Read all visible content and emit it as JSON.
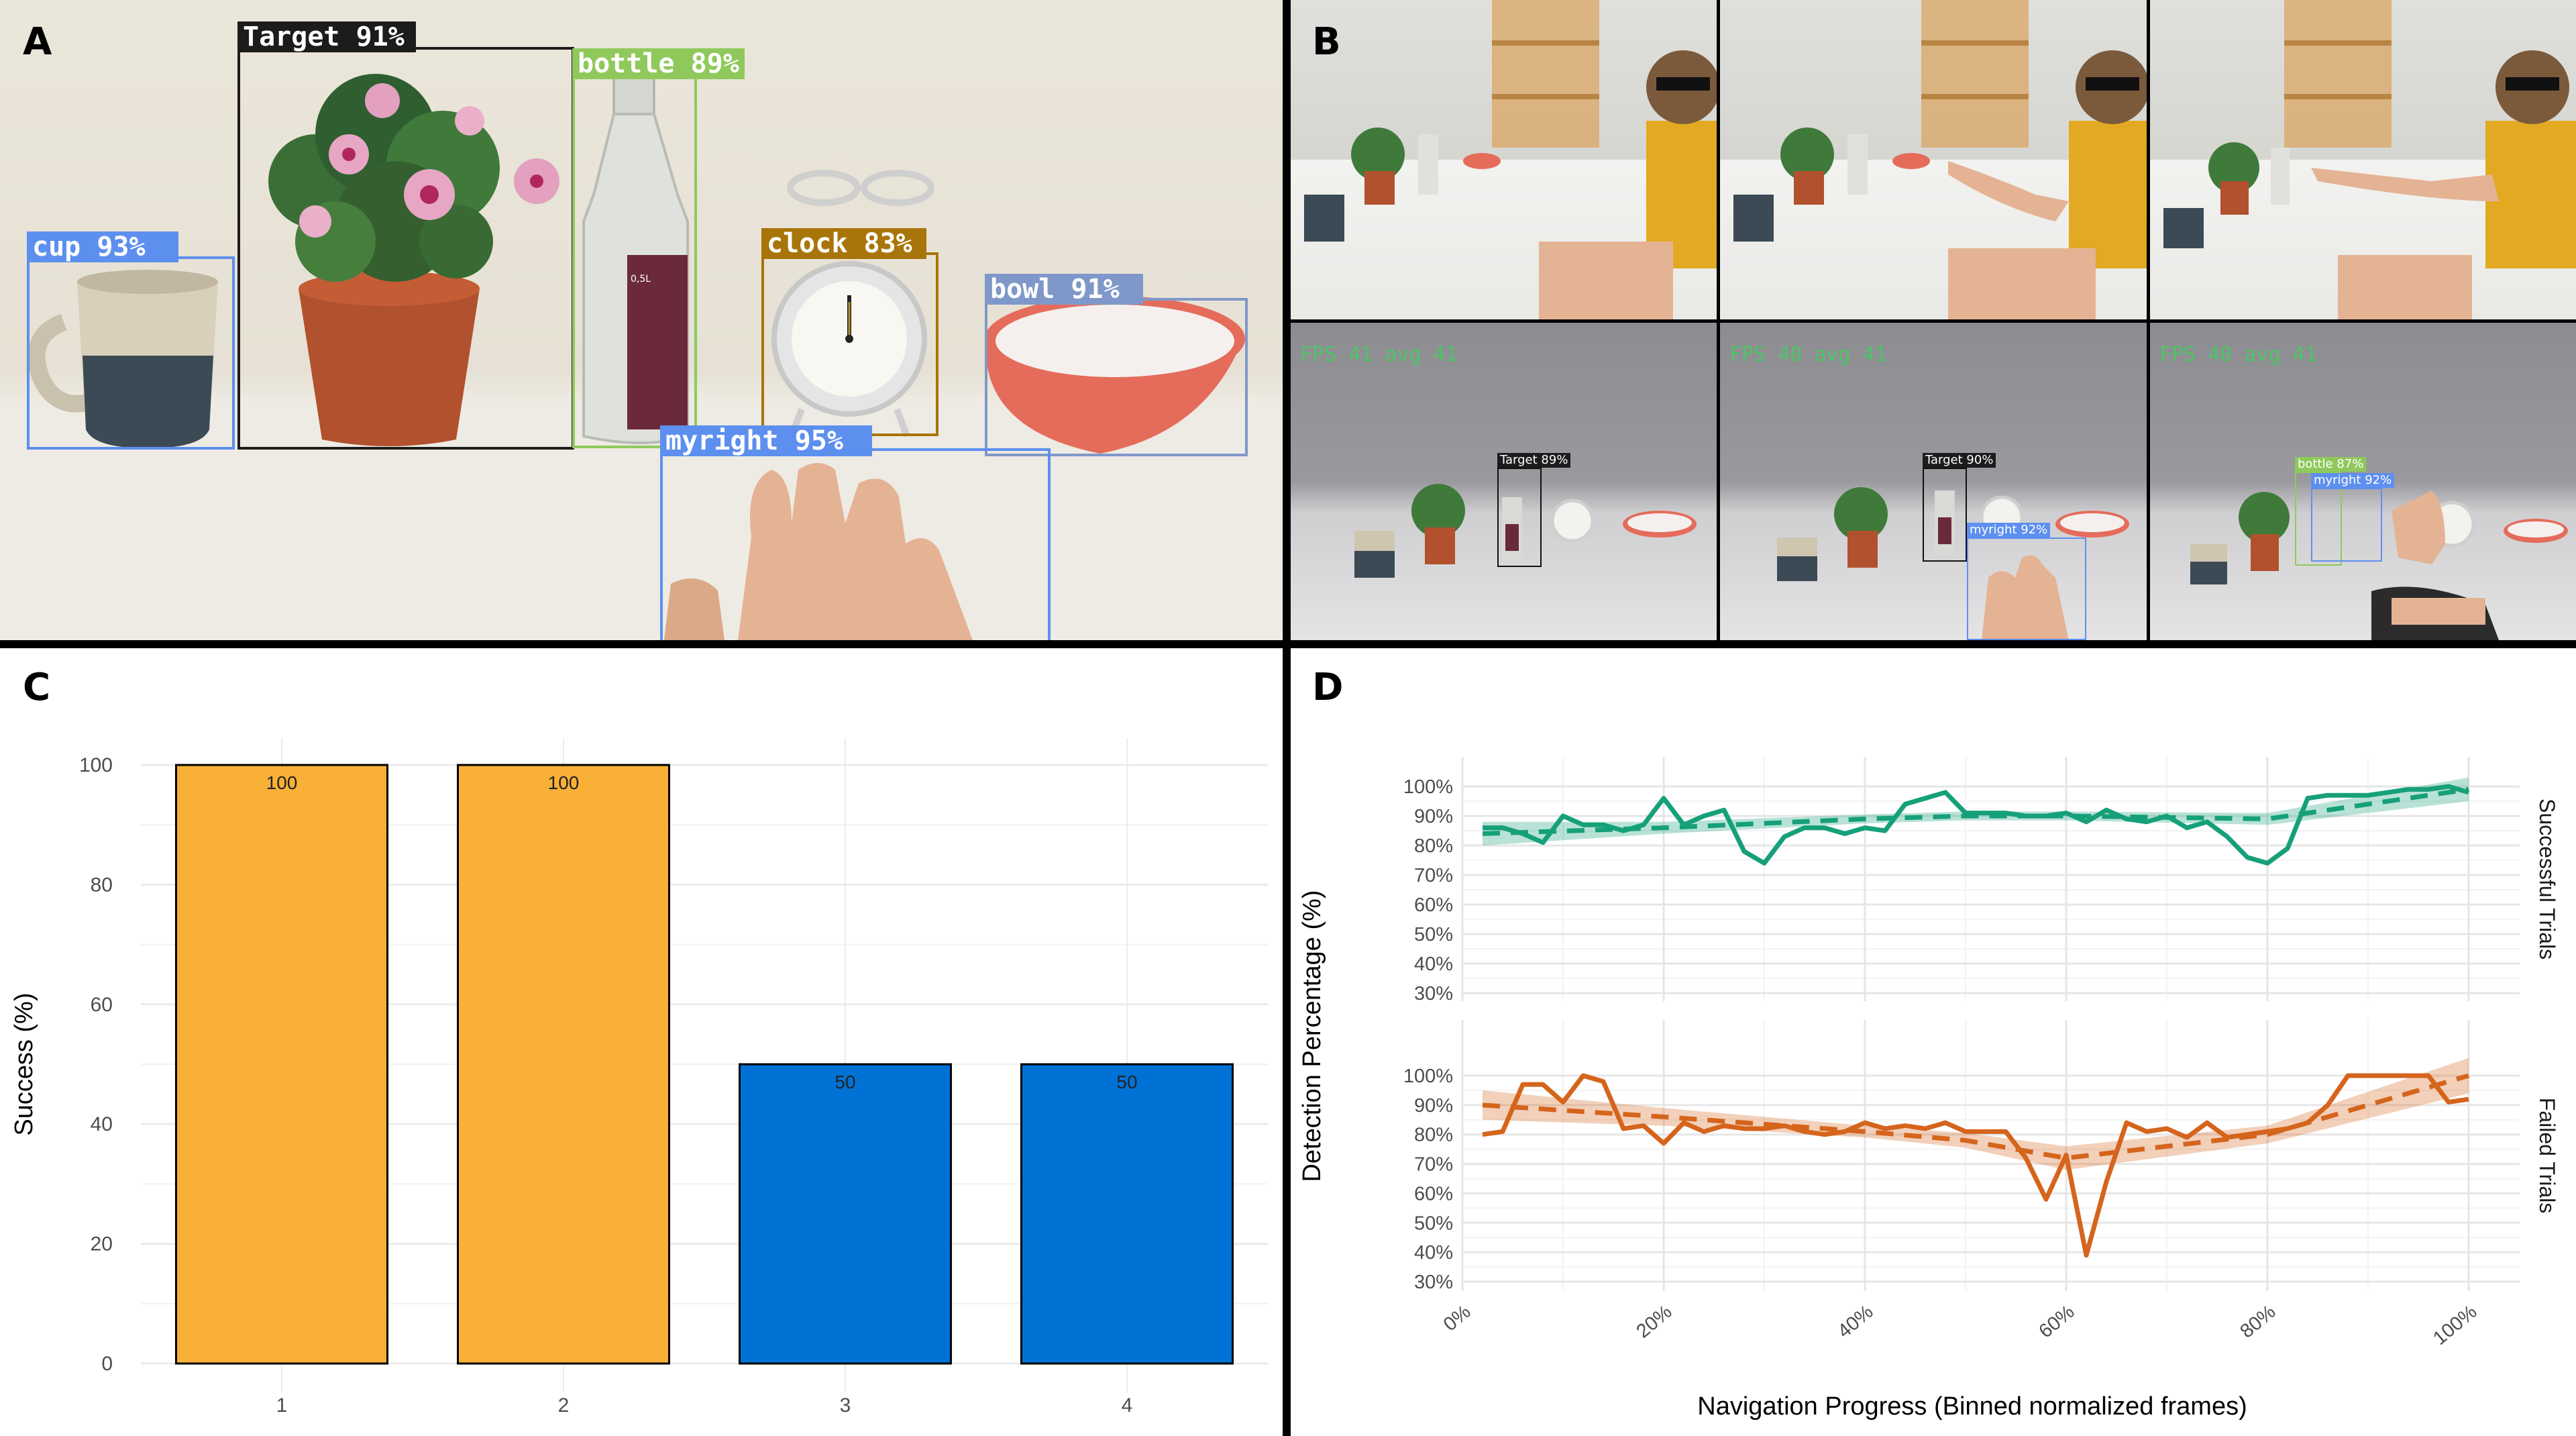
{
  "panels": {
    "a": "A",
    "b": "B",
    "c": "C",
    "d": "D"
  },
  "panel_a": {
    "detections": [
      {
        "label": "Target 91%",
        "color": "#1c1c1c"
      },
      {
        "label": "bottle 89%",
        "color": "#8fc95c"
      },
      {
        "label": "cup 93%",
        "color": "#5d8fef"
      },
      {
        "label": "clock 83%",
        "color": "#a8750a"
      },
      {
        "label": "bowl 91%",
        "color": "#7f98c9"
      },
      {
        "label": "myright 95%",
        "color": "#5d8fef"
      }
    ],
    "bottle_tag": "0,5L"
  },
  "panel_b": {
    "fps_text": "FPS 41 avg 41",
    "fps_text_2": "FPS 40 avg 41",
    "fps_text_3": "FPS 40 avg 41",
    "frame1": [
      {
        "label": "Target 89%"
      }
    ],
    "frame2": [
      {
        "label": "Target 90%"
      },
      {
        "label": "myright 92%"
      }
    ],
    "frame3": [
      {
        "label": "bottle 87%"
      },
      {
        "label": "myright 92%"
      }
    ]
  },
  "chart_data": [
    {
      "type": "bar",
      "panel": "C",
      "categories": [
        "1",
        "2",
        "3",
        "4"
      ],
      "values": [
        100,
        100,
        50,
        50
      ],
      "data_labels": [
        "100",
        "100",
        "50",
        "50"
      ],
      "colors": [
        "#f9b036",
        "#f9b036",
        "#0072d6",
        "#0072d6"
      ],
      "title": "",
      "xlabel": "",
      "ylabel": "Success (%)",
      "ylim": [
        0,
        100
      ],
      "yticks": [
        0,
        20,
        40,
        60,
        80,
        100
      ],
      "grid": true
    },
    {
      "type": "line",
      "panel": "D",
      "xlabel": "Navigation Progress (Binned normalized frames)",
      "ylabel": "Detection Percentage (%)",
      "xlim": [
        0,
        100
      ],
      "ylim": [
        30,
        100
      ],
      "xticks": [
        0,
        20,
        40,
        60,
        80,
        100
      ],
      "xtick_labels": [
        "0%",
        "20%",
        "40%",
        "60%",
        "80%",
        "100%"
      ],
      "yticks": [
        30,
        40,
        50,
        60,
        70,
        80,
        90,
        100
      ],
      "ytick_labels": [
        "30%",
        "40%",
        "50%",
        "60%",
        "70%",
        "80%",
        "90%",
        "100%"
      ],
      "facets": [
        {
          "name": "Successful Trials",
          "color": "#16a079",
          "x": [
            2,
            4,
            6,
            8,
            10,
            12,
            14,
            16,
            18,
            20,
            22,
            24,
            26,
            28,
            30,
            32,
            34,
            36,
            38,
            40,
            42,
            44,
            46,
            48,
            50,
            52,
            54,
            56,
            58,
            60,
            62,
            64,
            66,
            68,
            70,
            72,
            74,
            76,
            78,
            80,
            82,
            84,
            86,
            88,
            90,
            92,
            94,
            96,
            98,
            100
          ],
          "values": [
            86,
            86,
            84,
            81,
            90,
            87,
            87,
            85,
            87,
            96,
            87,
            90,
            92,
            78,
            74,
            83,
            86,
            86,
            84,
            86,
            85,
            94,
            96,
            98,
            91,
            91,
            91,
            90,
            90,
            91,
            88,
            92,
            89,
            88,
            90,
            86,
            88,
            83,
            76,
            74,
            79,
            96,
            97,
            97,
            97,
            98,
            99,
            99,
            100,
            98
          ],
          "trend": {
            "x": [
              2,
              20,
              40,
              50,
              60,
              80,
              100
            ],
            "values": [
              84,
              86,
              89,
              90,
              90,
              89,
              99
            ],
            "band_halfwidth": [
              4,
              2,
              1.5,
              1.5,
              1.5,
              2,
              4
            ]
          }
        },
        {
          "name": "Failed Trials",
          "color": "#d5641c",
          "x": [
            2,
            4,
            6,
            8,
            10,
            12,
            14,
            16,
            18,
            20,
            22,
            24,
            26,
            28,
            30,
            32,
            34,
            36,
            38,
            40,
            42,
            44,
            46,
            48,
            50,
            52,
            54,
            56,
            58,
            60,
            62,
            64,
            66,
            68,
            70,
            72,
            74,
            76,
            78,
            80,
            82,
            84,
            86,
            88,
            90,
            92,
            94,
            96,
            98,
            100
          ],
          "values": [
            80,
            81,
            97,
            97,
            91,
            100,
            98,
            82,
            83,
            77,
            84,
            81,
            83,
            82,
            82,
            83,
            81,
            80,
            81,
            84,
            82,
            83,
            82,
            84,
            81,
            81,
            81,
            72,
            58,
            73,
            39,
            64,
            84,
            81,
            82,
            79,
            84,
            79,
            80,
            81,
            82,
            84,
            90,
            100,
            100,
            100,
            100,
            100,
            91,
            92
          ],
          "trend": {
            "x": [
              2,
              20,
              40,
              50,
              60,
              80,
              100
            ],
            "values": [
              90,
              86,
              81,
              78,
              72,
              80,
              100
            ],
            "band_halfwidth": [
              5,
              3,
              2,
              2.5,
              4,
              3,
              6
            ]
          }
        }
      ]
    }
  ]
}
